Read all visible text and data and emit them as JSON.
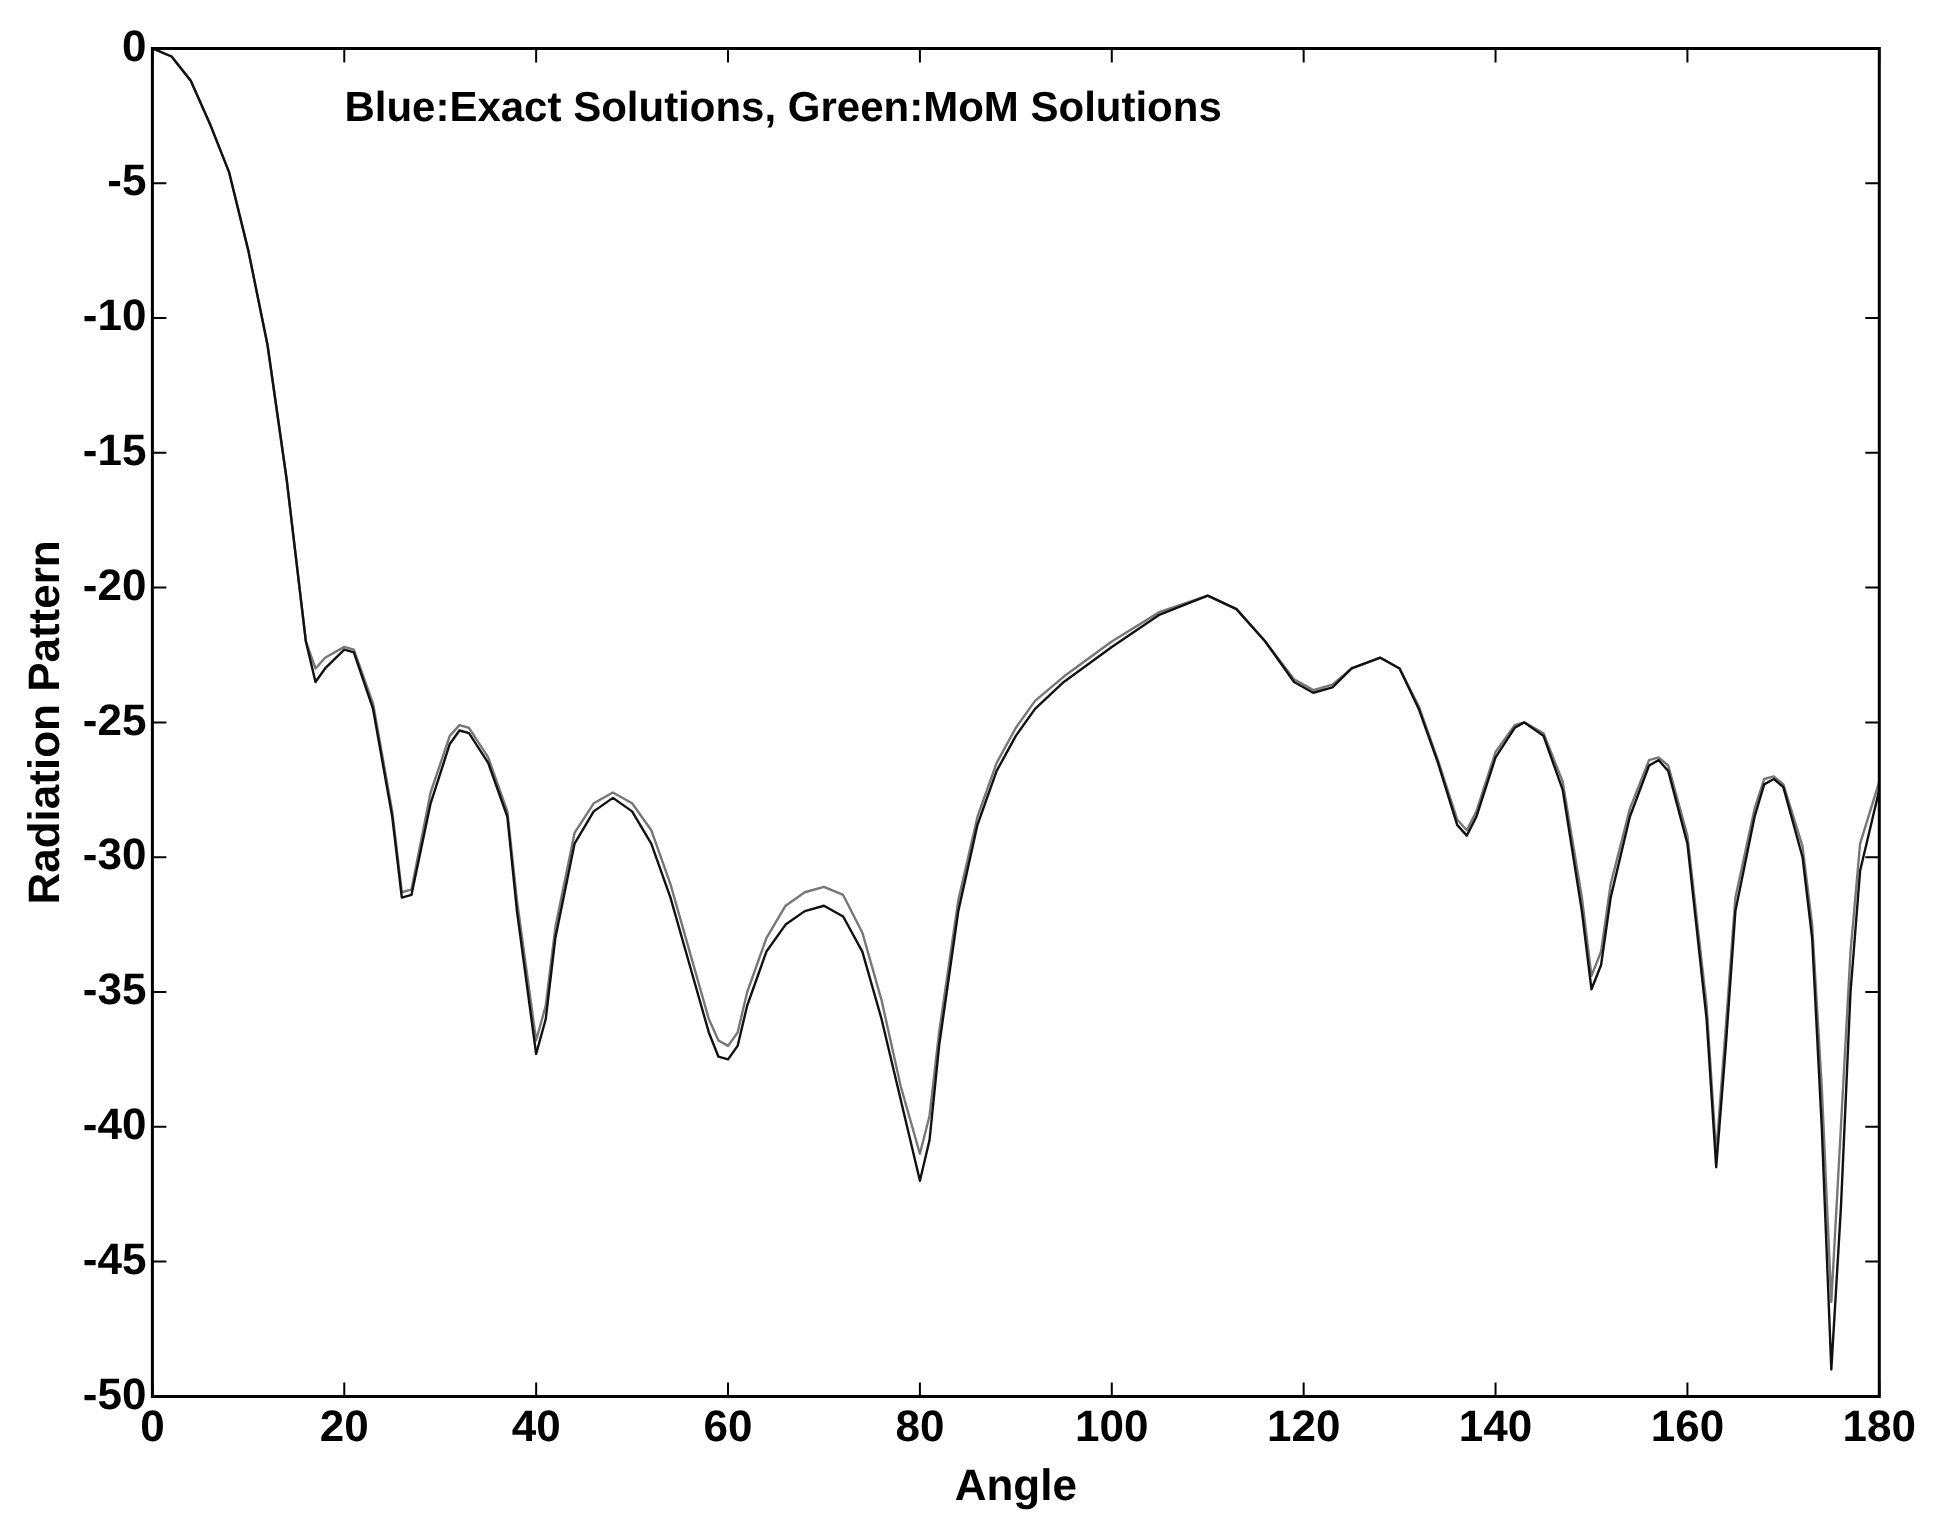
{
  "chart_data": {
    "type": "line",
    "xlabel": "Angle",
    "ylabel": "Radiation Pattern",
    "annotations": [
      "Blue:Exact Solutions, Green:MoM Solutions"
    ],
    "x": [
      0,
      2,
      4,
      6,
      8,
      10,
      12,
      14,
      16,
      17,
      18,
      20,
      21,
      23,
      25,
      26,
      27,
      29,
      31,
      32,
      33,
      35,
      37,
      38,
      40,
      41,
      42,
      44,
      46,
      48,
      50,
      52,
      54,
      56,
      58,
      59,
      60,
      61,
      62,
      64,
      66,
      68,
      70,
      72,
      74,
      76,
      78,
      80,
      81,
      82,
      84,
      86,
      88,
      90,
      92,
      95,
      100,
      105,
      110,
      113,
      116,
      119,
      121,
      123,
      125,
      128,
      130,
      132,
      134,
      136,
      137,
      138,
      140,
      142,
      143,
      145,
      147,
      149,
      150,
      151,
      152,
      154,
      156,
      157,
      158,
      160,
      162,
      163,
      164,
      165,
      167,
      168,
      169,
      170,
      172,
      173,
      174,
      175,
      176,
      177,
      178,
      180
    ],
    "series": [
      {
        "color": "#111111",
        "values": [
          0,
          -0.3,
          -1.2,
          -2.8,
          -4.6,
          -7.5,
          -11,
          -16,
          -22,
          -23.5,
          -23,
          -22.3,
          -22.4,
          -24.5,
          -28.5,
          -31.5,
          -31.4,
          -28,
          -25.8,
          -25.3,
          -25.4,
          -26.5,
          -28.5,
          -32,
          -37.3,
          -36,
          -33,
          -29.5,
          -28.3,
          -27.8,
          -28.3,
          -29.5,
          -31.5,
          -34,
          -36.5,
          -37.4,
          -37.5,
          -37,
          -35.5,
          -33.5,
          -32.5,
          -32,
          -31.8,
          -32.2,
          -33.5,
          -36,
          -39,
          -42,
          -40.5,
          -37,
          -32,
          -28.8,
          -26.8,
          -25.5,
          -24.5,
          -23.5,
          -22.2,
          -21,
          -20.3,
          -20.8,
          -22,
          -23.5,
          -23.9,
          -23.7,
          -23,
          -22.6,
          -23,
          -24.5,
          -26.5,
          -28.8,
          -29.2,
          -28.5,
          -26.3,
          -25.2,
          -25,
          -25.5,
          -27.5,
          -32,
          -34.9,
          -34,
          -31.5,
          -28.5,
          -26.6,
          -26.4,
          -26.8,
          -29.5,
          -36,
          -41.5,
          -37,
          -32,
          -28.5,
          -27.3,
          -27.1,
          -27.4,
          -30,
          -33,
          -40,
          -49,
          -43,
          -35,
          -30.5,
          -27.5
        ]
      },
      {
        "color": "#777777",
        "values": [
          0,
          -0.3,
          -1.2,
          -2.8,
          -4.6,
          -7.5,
          -11,
          -16,
          -22,
          -23,
          -22.6,
          -22.2,
          -22.3,
          -24.3,
          -28.3,
          -31.3,
          -31.2,
          -27.6,
          -25.5,
          -25.1,
          -25.2,
          -26.3,
          -28.3,
          -31.6,
          -36.8,
          -35.5,
          -32.6,
          -29.1,
          -28,
          -27.6,
          -28,
          -29,
          -31,
          -33.5,
          -36,
          -36.8,
          -37,
          -36.5,
          -35,
          -33,
          -31.8,
          -31.3,
          -31.1,
          -31.4,
          -32.8,
          -35.3,
          -38.5,
          -41,
          -39.6,
          -36.5,
          -31.6,
          -28.5,
          -26.5,
          -25.2,
          -24.2,
          -23.3,
          -22,
          -20.9,
          -20.3,
          -20.8,
          -22,
          -23.4,
          -23.8,
          -23.6,
          -23,
          -22.6,
          -23,
          -24.4,
          -26.4,
          -28.6,
          -29,
          -28.3,
          -26.1,
          -25.1,
          -25,
          -25.4,
          -27.2,
          -31.5,
          -34.4,
          -33.5,
          -31,
          -28.2,
          -26.4,
          -26.3,
          -26.6,
          -29.2,
          -35.5,
          -41,
          -36.3,
          -31.5,
          -28.2,
          -27.1,
          -27,
          -27.3,
          -29.6,
          -32.5,
          -38.5,
          -46.5,
          -40,
          -33.5,
          -29.5,
          -27.2
        ]
      }
    ],
    "xlim": [
      0,
      180
    ],
    "xticks": [
      0,
      20,
      40,
      60,
      80,
      100,
      120,
      140,
      160,
      180
    ],
    "ylim": [
      -50,
      0
    ],
    "yticks": [
      -50,
      -45,
      -40,
      -35,
      -30,
      -25,
      -20,
      -15,
      -10,
      -5,
      0
    ],
    "grid": false,
    "legend": false,
    "marker": "none",
    "line_style": "solid"
  }
}
